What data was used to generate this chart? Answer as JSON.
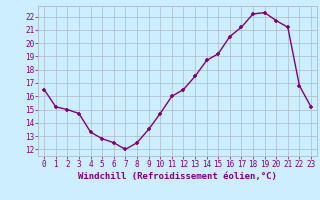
{
  "x": [
    0,
    1,
    2,
    3,
    4,
    5,
    6,
    7,
    8,
    9,
    10,
    11,
    12,
    13,
    14,
    15,
    16,
    17,
    18,
    19,
    20,
    21,
    22,
    23
  ],
  "y": [
    16.5,
    15.2,
    15.0,
    14.7,
    13.3,
    12.8,
    12.5,
    12.0,
    12.5,
    13.5,
    14.7,
    16.0,
    16.5,
    17.5,
    18.7,
    19.2,
    20.5,
    21.2,
    22.2,
    22.3,
    21.7,
    21.2,
    16.8,
    15.2
  ],
  "line_color": "#800080",
  "marker": "+",
  "marker_color": "#800080",
  "bg_color": "#cceeff",
  "grid_color": "#aabbcc",
  "xlabel": "Windchill (Refroidissement éolien,°C)",
  "ylim": [
    11.5,
    22.8
  ],
  "xlim": [
    -0.5,
    23.5
  ],
  "yticks": [
    12,
    13,
    14,
    15,
    16,
    17,
    18,
    19,
    20,
    21,
    22
  ],
  "xticks": [
    0,
    1,
    2,
    3,
    4,
    5,
    6,
    7,
    8,
    9,
    10,
    11,
    12,
    13,
    14,
    15,
    16,
    17,
    18,
    19,
    20,
    21,
    22,
    23
  ],
  "tick_label_color": "#800080",
  "tick_label_size": 5.5,
  "xlabel_size": 6.5,
  "line_width": 1.0,
  "marker_size": 3.5
}
